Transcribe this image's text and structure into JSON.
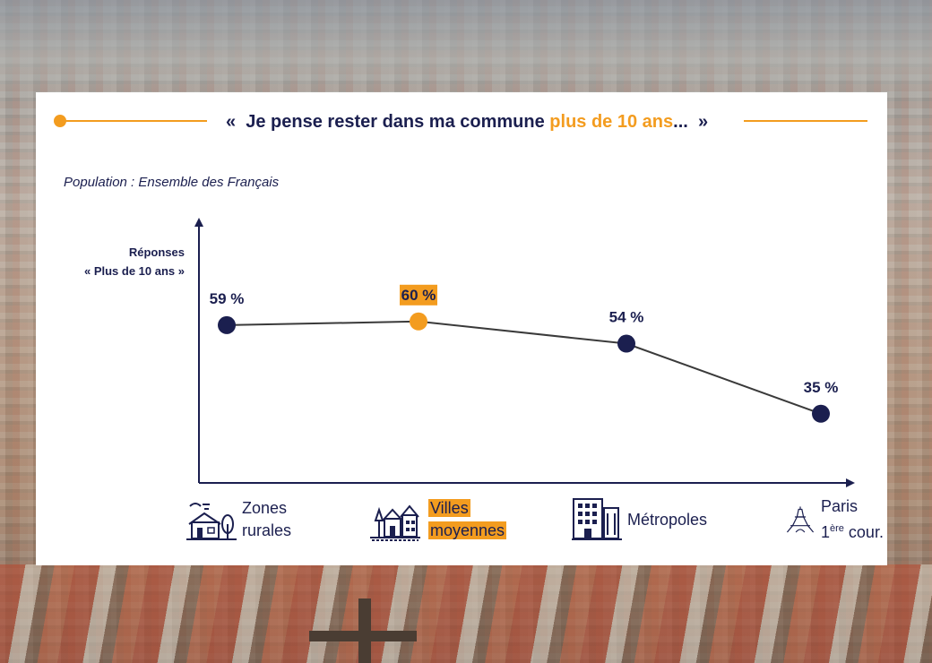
{
  "title": {
    "quote_open": "«",
    "text_before": "Je pense rester dans ma commune",
    "text_highlight": "plus de 10 ans",
    "text_after": "...",
    "quote_close": "»"
  },
  "population": "Population : Ensemble des Français",
  "colors": {
    "accent": "#f39c1f",
    "navy": "#1b1f4f",
    "line": "#3a3a3a"
  },
  "chart_data": {
    "type": "line",
    "title": "« Je pense rester dans ma commune plus de 10 ans… »",
    "ylabel_lines": [
      "Réponses",
      "« Plus de 10 ans »"
    ],
    "xlabel": "",
    "categories": [
      "Zones rurales",
      "Villes moyennes",
      "Métropoles",
      "Paris 1ère cour."
    ],
    "values": [
      59,
      60,
      54,
      35
    ],
    "value_labels": [
      "59 %",
      "60 %",
      "54 %",
      "35 %"
    ],
    "highlight_index": 1,
    "ylim": [
      0,
      75
    ],
    "grid": false,
    "legend": "none"
  },
  "categories_display": [
    {
      "line1": "Zones",
      "line2": "rurales",
      "icon": "rural-house-icon",
      "highlight": false
    },
    {
      "line1": "Villes",
      "line2": "moyennes",
      "icon": "town-houses-icon",
      "highlight": true
    },
    {
      "line1": "Métropoles",
      "line2": "",
      "icon": "city-buildings-icon",
      "highlight": false
    },
    {
      "line1": "Paris",
      "line2": "1",
      "line2_sup": "ère",
      "line2_rest": " cour.",
      "icon": "eiffel-tower-icon",
      "highlight": false
    }
  ]
}
